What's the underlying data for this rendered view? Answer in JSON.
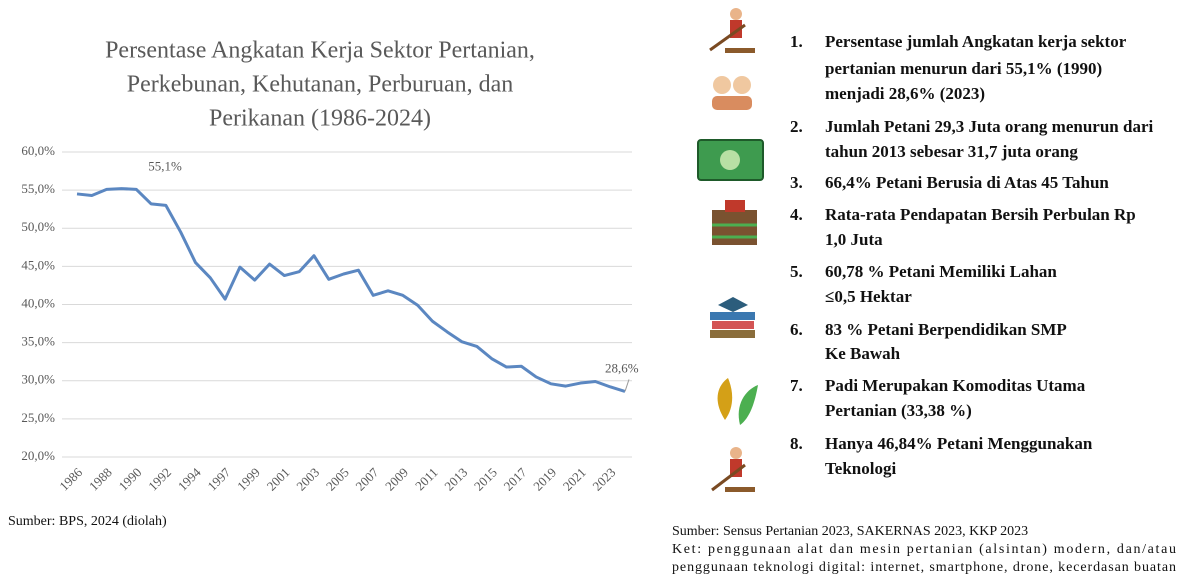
{
  "chart_data": {
    "type": "line",
    "title": [
      "Persentase Angkatan Kerja Sektor Pertanian,",
      "Perkebunan, Kehutanan, Perburuan, dan",
      "Perikanan (1986-2024)"
    ],
    "categories": [
      "1986",
      null,
      "1988",
      null,
      "1990",
      null,
      "1992",
      null,
      "1994",
      null,
      "1997",
      null,
      "1999",
      null,
      "2001",
      null,
      "2003",
      null,
      "2005",
      null,
      "2007",
      null,
      "2009",
      null,
      "2011",
      null,
      "2013",
      null,
      "2015",
      null,
      "2017",
      null,
      "2019",
      null,
      "2021",
      null,
      "2023",
      null
    ],
    "series": [
      {
        "name": "Persentase Angkatan Kerja",
        "color": "#5b87c1",
        "values": [
          54.5,
          54.3,
          55.1,
          55.2,
          55.1,
          53.2,
          53.0,
          49.5,
          45.5,
          43.5,
          40.7,
          44.9,
          43.2,
          45.3,
          43.8,
          44.3,
          46.4,
          43.3,
          44.0,
          44.5,
          41.2,
          41.8,
          41.2,
          39.9,
          37.8,
          36.4,
          35.1,
          34.5,
          32.9,
          31.8,
          31.9,
          30.5,
          29.6,
          29.3,
          29.7,
          29.9,
          29.2,
          28.6
        ],
        "value_labels": [
          null,
          null,
          null,
          null,
          "55,1%",
          null,
          null,
          null,
          null,
          null,
          null,
          null,
          null,
          null,
          null,
          null,
          null,
          null,
          null,
          null,
          null,
          null,
          null,
          null,
          null,
          null,
          null,
          null,
          null,
          null,
          null,
          null,
          null,
          null,
          null,
          null,
          null,
          "28,6%"
        ]
      }
    ],
    "ylim": [
      20,
      60
    ],
    "yticks": [
      {
        "value": 20,
        "label": "20,0%"
      },
      {
        "value": 25,
        "label": "25,0%"
      },
      {
        "value": 30,
        "label": "30,0%"
      },
      {
        "value": 35,
        "label": "35,0%"
      },
      {
        "value": 40,
        "label": "40,0%"
      },
      {
        "value": 45,
        "label": "45,0%"
      },
      {
        "value": 50,
        "label": "50,0%"
      },
      {
        "value": 55,
        "label": "55,0%"
      },
      {
        "value": 60,
        "label": "60,0%"
      }
    ],
    "grid": true,
    "source": "Sumber: BPS, 2024 (diolah)"
  },
  "facts": [
    {
      "number": "1.",
      "lines": [
        "Persentase jumlah Angkatan kerja sektor",
        "pertanian menurun dari 55,1% (1990)",
        "menjadi 28,6% (2023)"
      ]
    },
    {
      "number": "2.",
      "lines": [
        "Jumlah Petani 29,3 Juta orang menurun dari",
        "tahun 2013 sebesar 31,7 juta orang"
      ]
    },
    {
      "number": "3.",
      "lines": [
        "66,4% Petani Berusia di Atas 45 Tahun"
      ]
    },
    {
      "number": "4.",
      "lines": [
        "Rata-rata Pendapatan Bersih Perbulan Rp",
        "1,0 Juta"
      ]
    },
    {
      "number": "5.",
      "lines": [
        "60,78 % Petani Memiliki Lahan",
        "≤0,5 Hektar"
      ]
    },
    {
      "number": "6.",
      "lines": [
        "83 % Petani Berpendidikan SMP",
        "Ke Bawah"
      ]
    },
    {
      "number": "7.",
      "lines": [
        "Padi Merupakan Komoditas Utama",
        "Pertanian (33,38 %)"
      ]
    },
    {
      "number": "8.",
      "lines": [
        "Hanya 46,84% Petani Menggunakan",
        "Teknologi"
      ]
    }
  ],
  "notes": [
    "Sumber: Sensus Pertanian 2023, SAKERNAS 2023, KKP 2023",
    "Ket: penggunaan alat dan mesin pertanian (alsintan) modern, dan/atau",
    "penggunaan teknologi digital: internet, smartphone, drone, kecerdasan buatan"
  ]
}
